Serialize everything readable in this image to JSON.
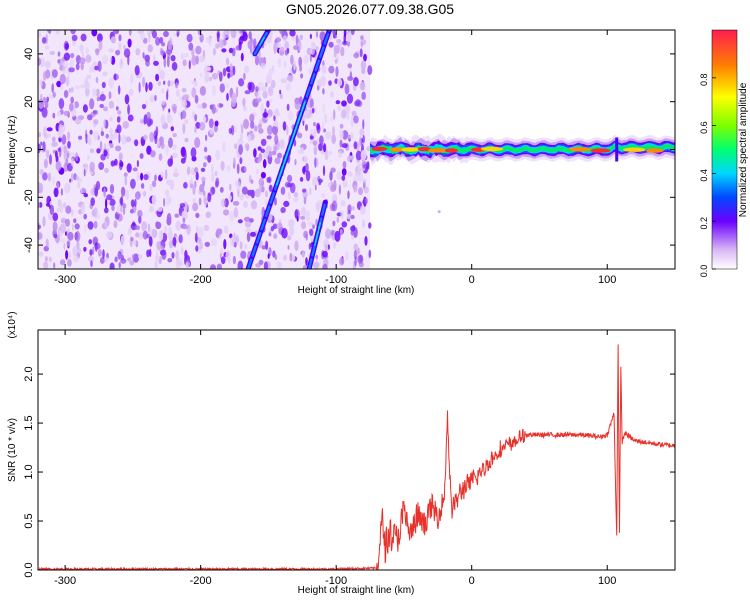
{
  "title": "GN05.2026.077.09.38.G05",
  "colors": {
    "snr_line": "#e8312a",
    "axis": "#000000",
    "background": "#ffffff"
  },
  "chart_data": [
    {
      "type": "heatmap",
      "xlabel": "Height of straight line (km)",
      "ylabel": "Frequency (Hz)",
      "xlim": [
        -320,
        150
      ],
      "ylim": [
        -50,
        50
      ],
      "xticks": [
        -300,
        -200,
        -100,
        0,
        100
      ],
      "yticks": [
        -40,
        -20,
        0,
        20,
        40
      ],
      "colorbar": {
        "label": "Normalized spectral amplitude",
        "range": [
          0,
          1
        ],
        "ticks": [
          "0.0",
          "0.2",
          "0.4",
          "0.6",
          "0.8"
        ],
        "colormap": "rainbow"
      },
      "regions": {
        "noise_extent_km": [
          -320,
          -75
        ],
        "carrier_extent_km": [
          -75,
          150
        ],
        "carrier_center_hz": 0
      },
      "streaks": [
        {
          "from": [
            -165,
            -50
          ],
          "to": [
            -105,
            50
          ]
        },
        {
          "from": [
            -160,
            40
          ],
          "to": [
            -150,
            50
          ]
        },
        {
          "from": [
            -120,
            -50
          ],
          "to": [
            -108,
            -22
          ]
        }
      ]
    },
    {
      "type": "line",
      "xlabel": "Height of straight line (km)",
      "ylabel": "SNR (10 * v/v)",
      "y_multiplier": "(x10⁴)",
      "xlim": [
        -320,
        150
      ],
      "ylim": [
        0,
        2.45
      ],
      "xticks": [
        -300,
        -200,
        -100,
        0,
        100
      ],
      "yticks": [
        "0.0",
        "0.5",
        "1.0",
        "1.5",
        "2.0"
      ],
      "series": [
        {
          "x": [
            -320,
            -100,
            -70,
            -66,
            -64,
            -60,
            -55,
            -50,
            -45,
            -40,
            -35,
            -30,
            -25,
            -20,
            -18,
            -15,
            -10,
            -5,
            0,
            10,
            20,
            30,
            40,
            60,
            80,
            95,
            100,
            105,
            107,
            108,
            109,
            110,
            111,
            113,
            120,
            130,
            140,
            150
          ],
          "y": [
            0.01,
            0.01,
            0.02,
            0.5,
            0.25,
            0.4,
            0.3,
            0.6,
            0.35,
            0.55,
            0.45,
            0.65,
            0.55,
            0.75,
            1.62,
            0.6,
            0.75,
            0.85,
            0.9,
            1.05,
            1.22,
            1.3,
            1.38,
            1.38,
            1.38,
            1.36,
            1.38,
            1.6,
            0.3,
            2.4,
            0.3,
            2.1,
            1.3,
            1.4,
            1.32,
            1.3,
            1.28,
            1.27
          ]
        }
      ]
    }
  ]
}
